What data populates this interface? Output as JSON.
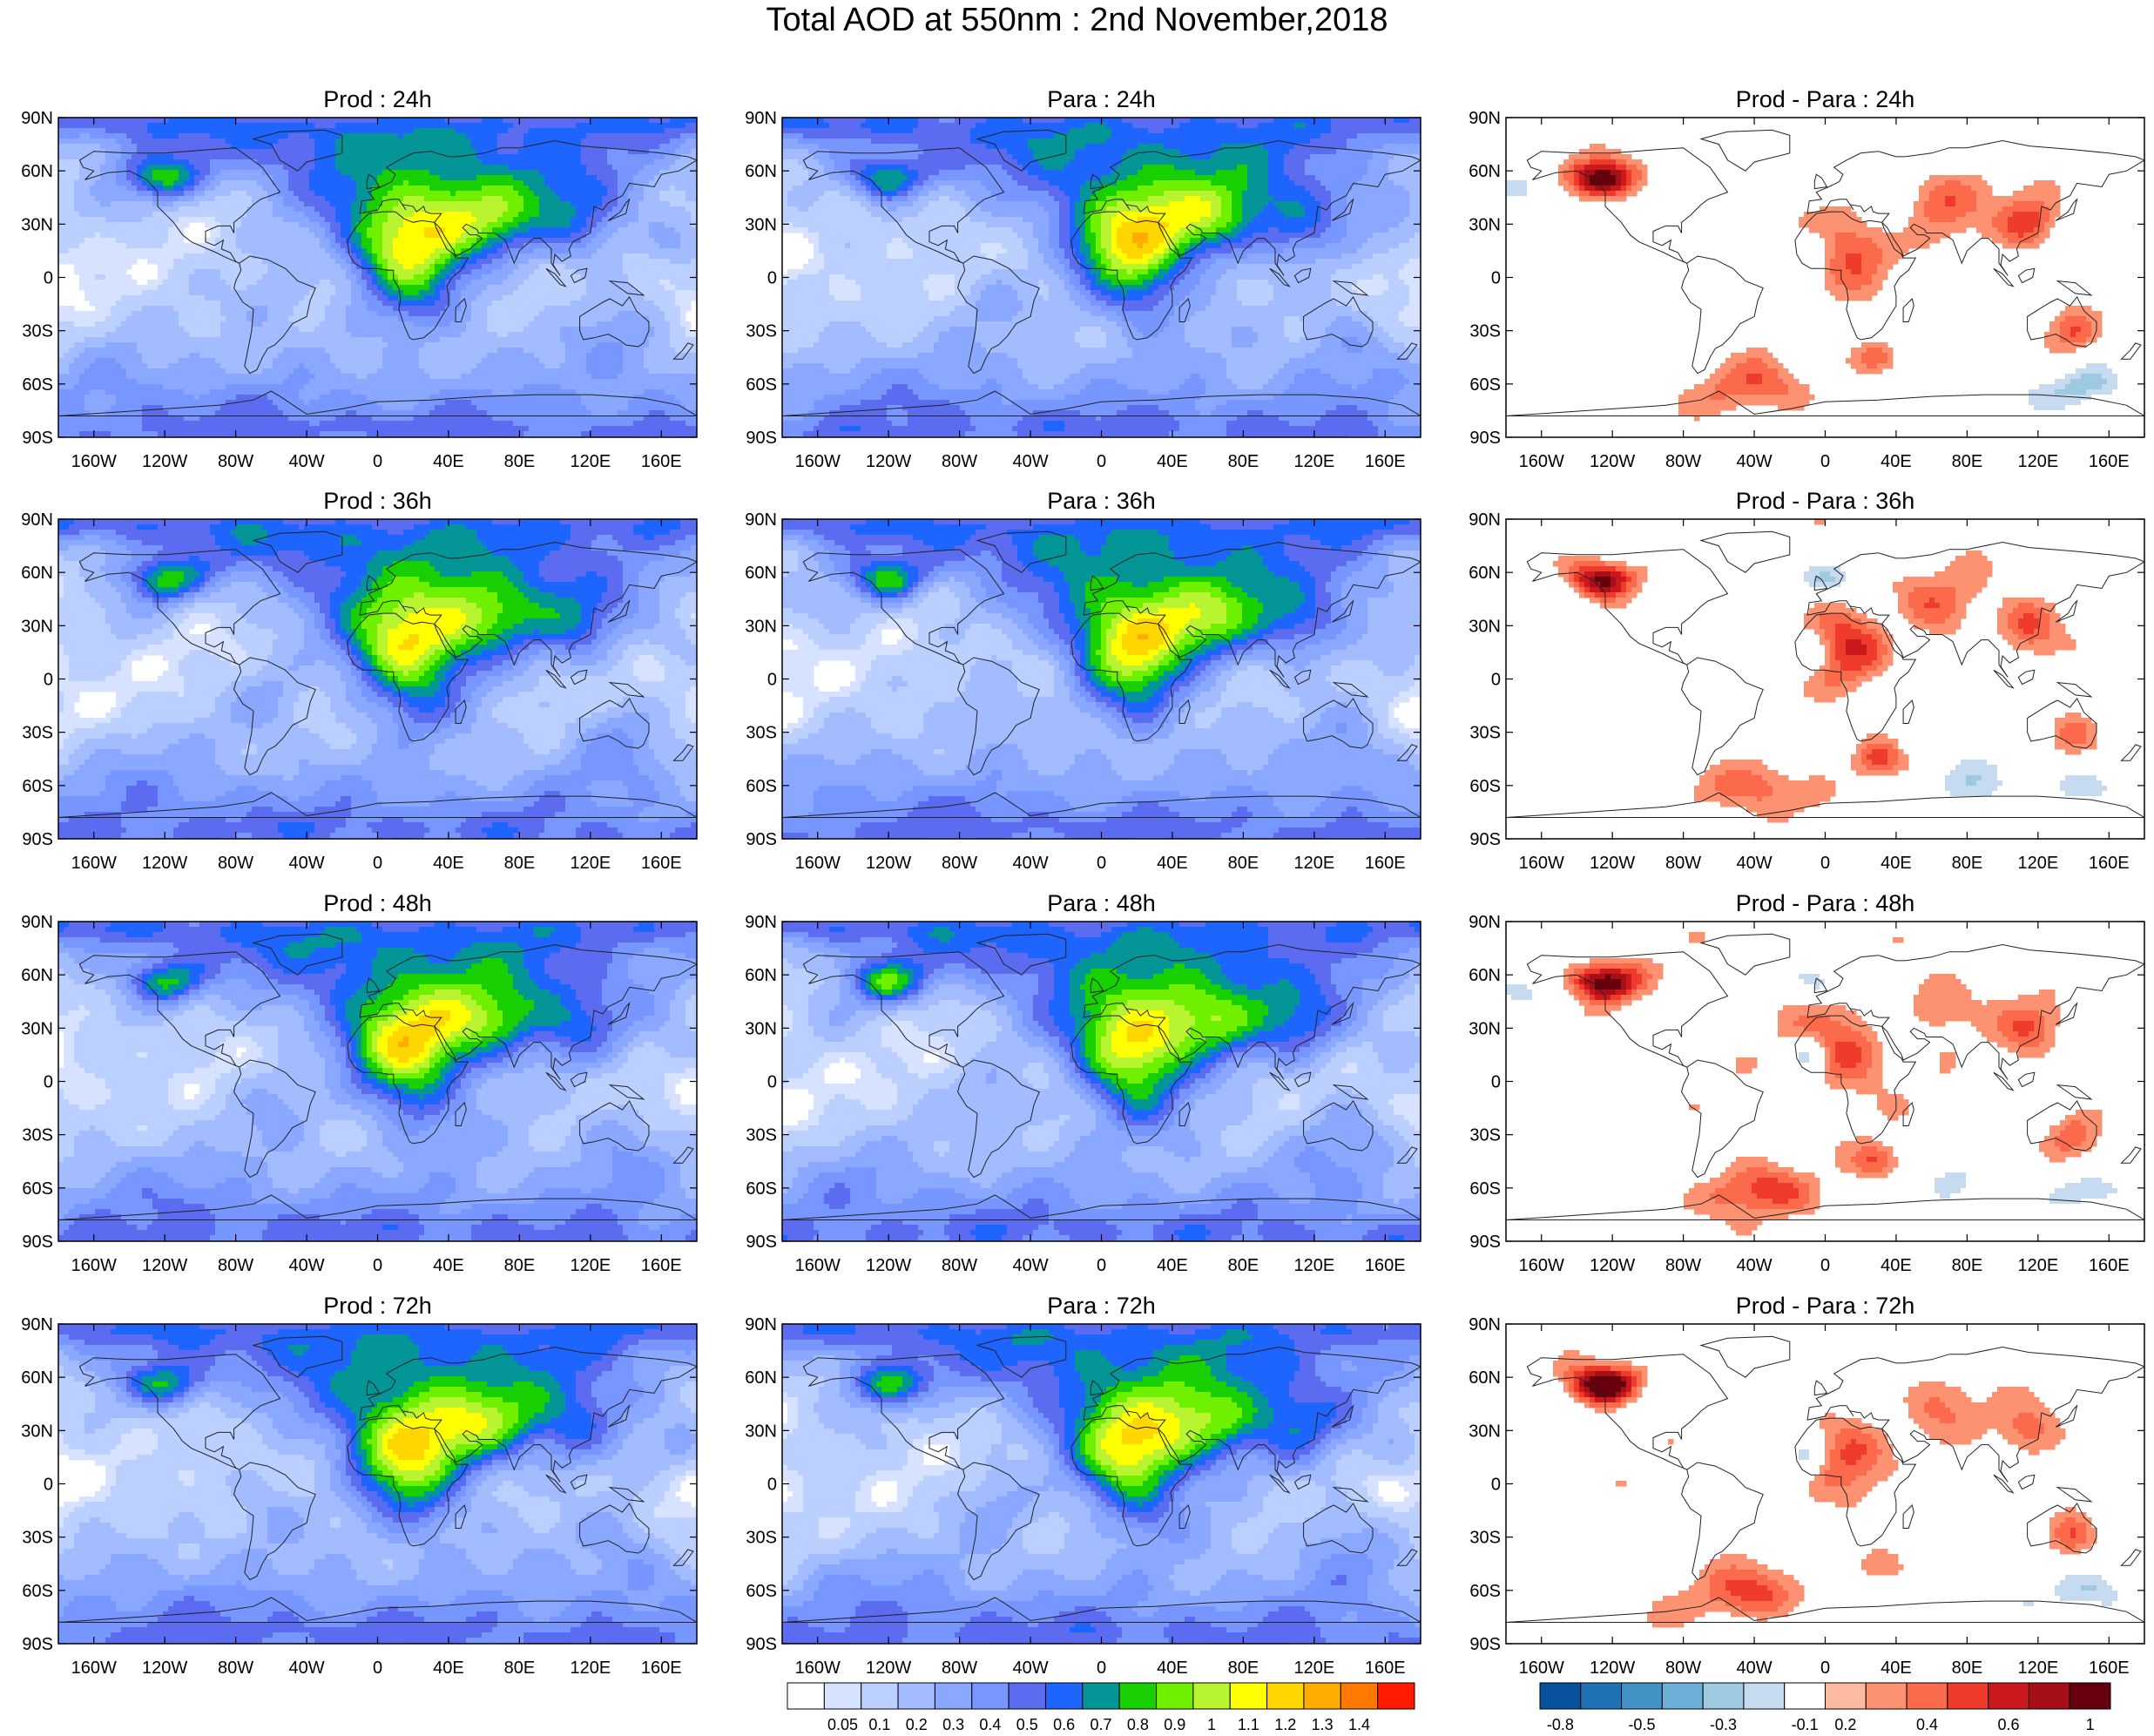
{
  "title": "Total AOD at 550nm : 2nd November,2018",
  "panels": [
    {
      "title": "Prod : 24h",
      "kind": "aod",
      "variant": 0
    },
    {
      "title": "Para : 24h",
      "kind": "aod",
      "variant": 1
    },
    {
      "title": "Prod - Para : 24h",
      "kind": "diff",
      "variant": 0
    },
    {
      "title": "Prod : 36h",
      "kind": "aod",
      "variant": 2
    },
    {
      "title": "Para : 36h",
      "kind": "aod",
      "variant": 3
    },
    {
      "title": "Prod - Para : 36h",
      "kind": "diff",
      "variant": 1
    },
    {
      "title": "Prod : 48h",
      "kind": "aod",
      "variant": 4
    },
    {
      "title": "Para : 48h",
      "kind": "aod",
      "variant": 5
    },
    {
      "title": "Prod - Para : 48h",
      "kind": "diff",
      "variant": 2
    },
    {
      "title": "Prod : 72h",
      "kind": "aod",
      "variant": 6
    },
    {
      "title": "Para : 72h",
      "kind": "aod",
      "variant": 7
    },
    {
      "title": "Prod - Para : 72h",
      "kind": "diff",
      "variant": 3
    }
  ],
  "lat_ticks": [
    "90N",
    "60N",
    "30N",
    "0",
    "30S",
    "60S",
    "90S"
  ],
  "lon_ticks": [
    "160W",
    "120W",
    "80W",
    "40W",
    "0",
    "40E",
    "80E",
    "120E",
    "160E"
  ],
  "aod_colorbar": {
    "labels": [
      "0.05",
      "0.1",
      "0.2",
      "0.3",
      "0.4",
      "0.5",
      "0.6",
      "0.7",
      "0.8",
      "0.9",
      "1",
      "1.1",
      "1.2",
      "1.3",
      "1.4"
    ],
    "colors": [
      "#ffffff",
      "#d6e2ff",
      "#bcd0ff",
      "#a3bcff",
      "#8aa8ff",
      "#7896ff",
      "#5c6cf0",
      "#1e64ff",
      "#049696",
      "#18d000",
      "#6ef000",
      "#b8f530",
      "#ffff00",
      "#ffd600",
      "#ffac00",
      "#ff7800",
      "#ff1a00"
    ]
  },
  "diff_colorbar": {
    "labels": [
      "-0.8",
      "-0.5",
      "-0.3",
      "-0.1",
      "0.2",
      "0.4",
      "0.6",
      "1"
    ],
    "colors": [
      "#08519c",
      "#2171b5",
      "#4292c6",
      "#6baed6",
      "#9ecae1",
      "#c6dbef",
      "#ffffff",
      "#fcbba1",
      "#fc9272",
      "#fb6a4a",
      "#ef3b2c",
      "#cb181d",
      "#a50f15",
      "#67000d"
    ]
  }
}
